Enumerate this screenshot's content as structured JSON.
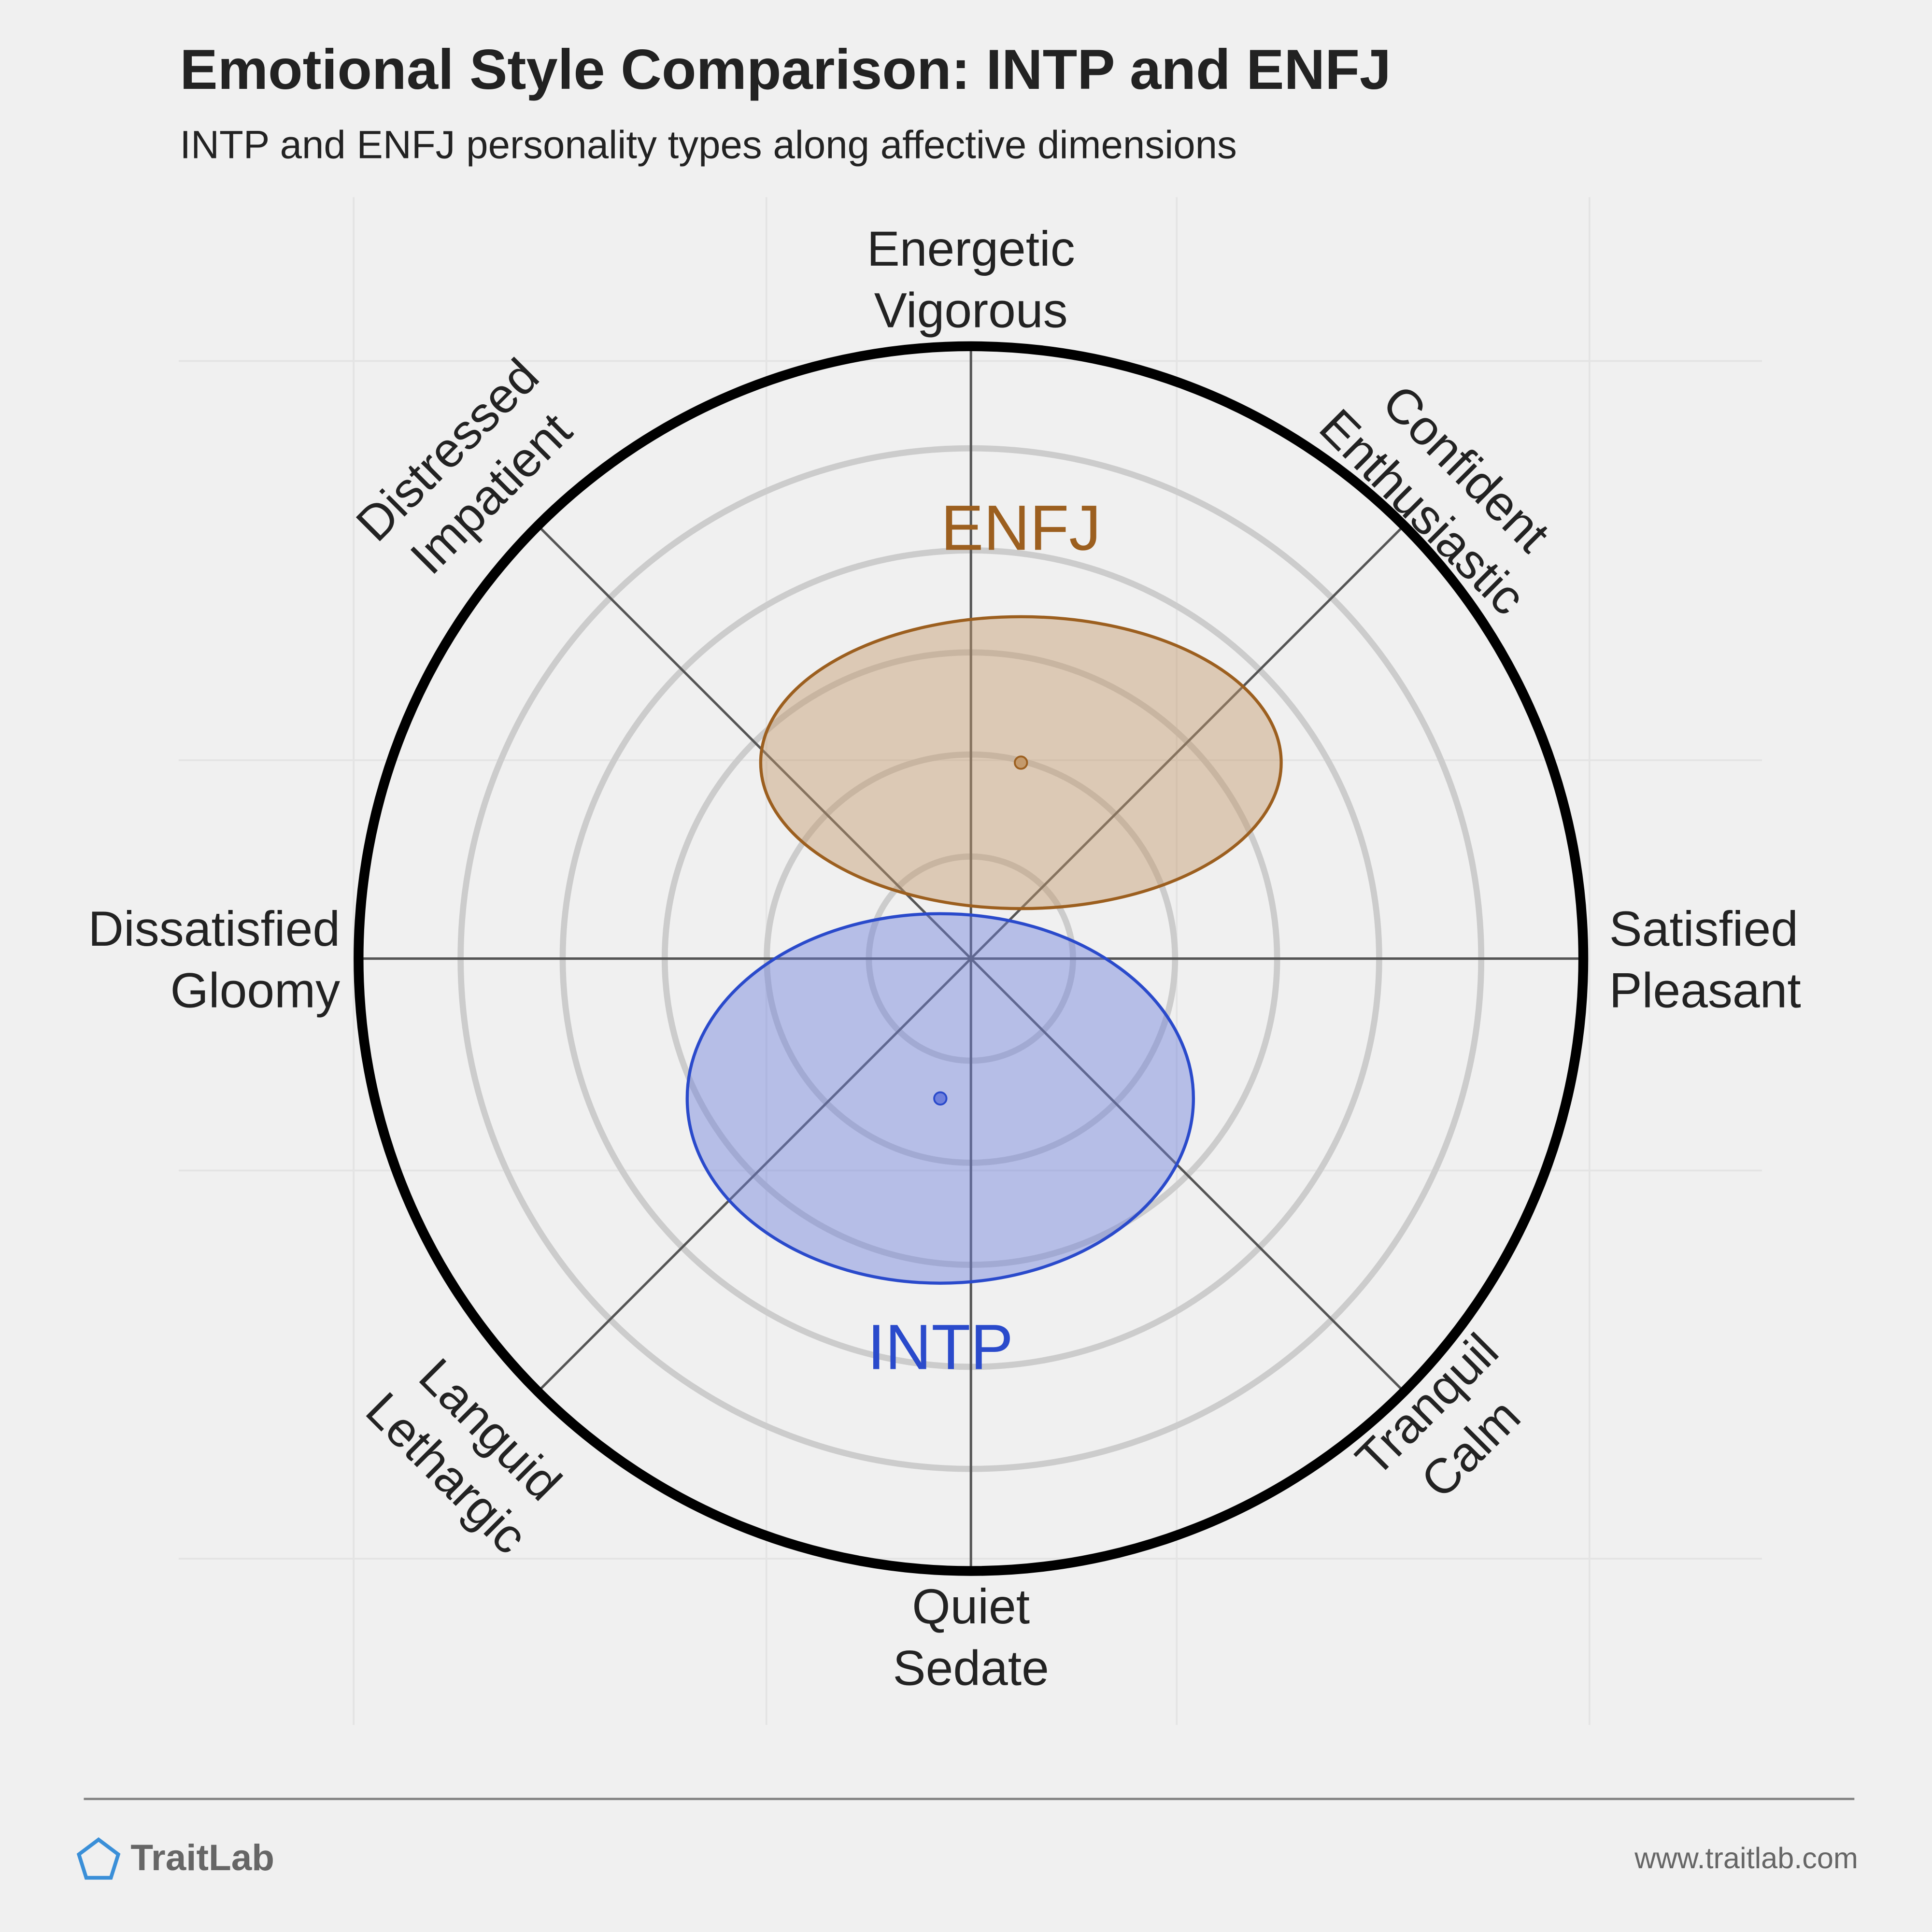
{
  "chart_data": {
    "type": "circumplex",
    "title": "Emotional Style Comparison: INTP and ENFJ",
    "subtitle": "INTP and ENFJ personality types along affective dimensions",
    "axis_labels": [
      [
        "Energetic",
        "Vigorous"
      ],
      [
        "Confident",
        "Enthusiastic"
      ],
      [
        "Satisfied",
        "Pleasant"
      ],
      [
        "Tranquil",
        "Calm"
      ],
      [
        "Quiet",
        "Sedate"
      ],
      [
        "Languid",
        "Lethargic"
      ],
      [
        "Dissatisfied",
        "Gloomy"
      ],
      [
        "Distressed",
        "Impatient"
      ]
    ],
    "rlim": [
      0,
      6
    ],
    "rticks": [
      1,
      2,
      3,
      4,
      5
    ],
    "grid": true,
    "series": [
      {
        "name": "ENFJ",
        "color": "#9c5f1f",
        "fill": "#c49a6c",
        "x": 0.49,
        "y": 1.92,
        "rx": 2.55,
        "ry": 1.43
      },
      {
        "name": "INTP",
        "color": "#2a4acb",
        "fill": "#6f80dc",
        "x": -0.3,
        "y": -1.37,
        "rx": 2.48,
        "ry": 1.81
      }
    ]
  },
  "footer": {
    "brand": "TraitLab",
    "url": "www.traitlab.com"
  }
}
